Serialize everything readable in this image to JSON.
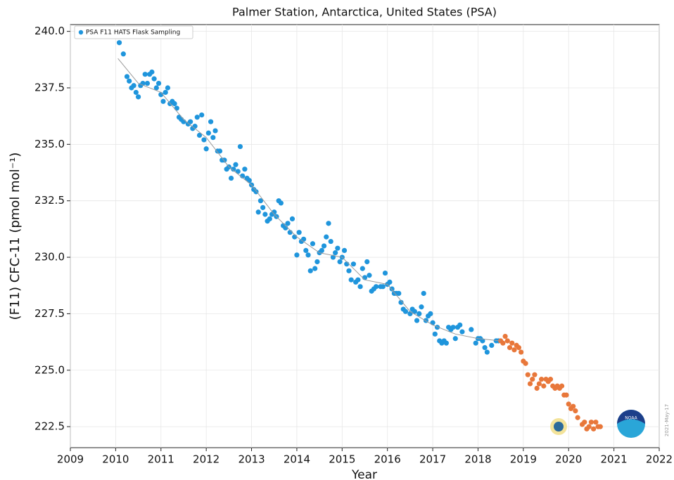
{
  "chart_data": {
    "type": "scatter",
    "title": "Palmer Station, Antarctica, United States (PSA)",
    "xlabel": "Year",
    "ylabel": "(F11) CFC-11 (pmol mol⁻¹)",
    "date_note": "2021-May-17",
    "xlim": [
      2009,
      2022
    ],
    "xticks": [
      2009,
      2010,
      2011,
      2012,
      2013,
      2014,
      2015,
      2016,
      2017,
      2018,
      2019,
      2020,
      2021,
      2022
    ],
    "ylim": [
      221.57,
      240.3
    ],
    "yticks": [
      222.5,
      {
        "value": 225,
        "label": "225.0"
      },
      227.5,
      {
        "value": 230,
        "label": "230.0"
      },
      232.5,
      {
        "value": 235,
        "label": "235.0"
      },
      237.5,
      {
        "value": 240,
        "label": "240.0"
      }
    ],
    "grid": true,
    "legend": "upper left",
    "series": [
      {
        "name": "PSA F11 HATS Flask Sampling",
        "type": "scatter",
        "color": "#1f95dc",
        "x": [
          2010.08,
          2010.17,
          2010.25,
          2010.3,
          2010.35,
          2010.4,
          2010.45,
          2010.5,
          2010.55,
          2010.6,
          2010.65,
          2010.7,
          2010.75,
          2010.8,
          2010.85,
          2010.9,
          2010.95,
          2011.0,
          2011.05,
          2011.1,
          2011.15,
          2011.2,
          2011.25,
          2011.3,
          2011.35,
          2011.4,
          2011.45,
          2011.5,
          2011.6,
          2011.65,
          2011.7,
          2011.75,
          2011.8,
          2011.85,
          2011.9,
          2011.95,
          2012.0,
          2012.05,
          2012.1,
          2012.15,
          2012.2,
          2012.25,
          2012.3,
          2012.35,
          2012.4,
          2012.45,
          2012.5,
          2012.55,
          2012.6,
          2012.65,
          2012.7,
          2012.75,
          2012.8,
          2012.85,
          2012.9,
          2012.95,
          2013.0,
          2013.05,
          2013.1,
          2013.15,
          2013.2,
          2013.25,
          2013.3,
          2013.35,
          2013.4,
          2013.45,
          2013.5,
          2013.55,
          2013.6,
          2013.65,
          2013.7,
          2013.75,
          2013.8,
          2013.85,
          2013.9,
          2013.95,
          2014.0,
          2014.05,
          2014.1,
          2014.15,
          2014.2,
          2014.25,
          2014.3,
          2014.35,
          2014.4,
          2014.45,
          2014.5,
          2014.55,
          2014.6,
          2014.65,
          2014.7,
          2014.75,
          2014.8,
          2014.85,
          2014.9,
          2014.95,
          2015.0,
          2015.05,
          2015.1,
          2015.15,
          2015.2,
          2015.25,
          2015.3,
          2015.35,
          2015.4,
          2015.45,
          2015.5,
          2015.55,
          2015.6,
          2015.65,
          2015.7,
          2015.75,
          2015.85,
          2015.9,
          2015.95,
          2016.0,
          2016.05,
          2016.1,
          2016.15,
          2016.2,
          2016.25,
          2016.3,
          2016.35,
          2016.4,
          2016.5,
          2016.55,
          2016.6,
          2016.65,
          2016.7,
          2016.75,
          2016.8,
          2016.85,
          2016.9,
          2016.95,
          2017.0,
          2017.05,
          2017.1,
          2017.15,
          2017.2,
          2017.25,
          2017.3,
          2017.35,
          2017.4,
          2017.45,
          2017.5,
          2017.55,
          2017.6,
          2017.65,
          2017.85,
          2017.95,
          2018.0,
          2018.05,
          2018.1,
          2018.15,
          2018.2,
          2018.3,
          2018.4,
          2018.45
        ],
        "values": [
          239.5,
          239.0,
          238.0,
          237.8,
          237.5,
          237.6,
          237.3,
          237.1,
          237.6,
          237.7,
          238.1,
          237.7,
          238.1,
          238.2,
          237.9,
          237.5,
          237.7,
          237.2,
          236.9,
          237.3,
          237.5,
          236.8,
          236.9,
          236.8,
          236.6,
          236.2,
          236.1,
          236.0,
          235.9,
          236.0,
          235.7,
          235.8,
          236.2,
          235.4,
          236.3,
          235.2,
          234.8,
          235.5,
          236.0,
          235.3,
          235.6,
          234.7,
          234.7,
          234.3,
          234.3,
          233.9,
          234.0,
          233.5,
          233.9,
          234.1,
          233.8,
          234.9,
          233.6,
          233.9,
          233.5,
          233.4,
          233.2,
          233.0,
          232.9,
          232.0,
          232.5,
          232.2,
          231.9,
          231.6,
          231.7,
          231.9,
          232.0,
          231.8,
          232.5,
          232.4,
          231.4,
          231.3,
          231.5,
          231.1,
          231.7,
          230.9,
          230.1,
          231.1,
          230.7,
          230.8,
          230.3,
          230.1,
          229.4,
          230.6,
          229.5,
          229.8,
          230.2,
          230.3,
          230.5,
          230.9,
          231.5,
          230.7,
          230.0,
          230.2,
          230.4,
          229.8,
          230.0,
          230.3,
          229.7,
          229.4,
          229.0,
          229.7,
          228.9,
          229.0,
          228.7,
          229.5,
          229.1,
          229.8,
          229.2,
          228.5,
          228.6,
          228.7,
          228.7,
          228.7,
          229.3,
          228.8,
          228.9,
          228.6,
          228.4,
          228.4,
          228.4,
          228.0,
          227.7,
          227.6,
          227.5,
          227.7,
          227.6,
          227.2,
          227.5,
          227.8,
          228.4,
          227.2,
          227.4,
          227.5,
          227.1,
          226.6,
          226.9,
          226.3,
          226.2,
          226.3,
          226.2,
          226.9,
          226.8,
          226.9,
          226.4,
          226.9,
          227.0,
          226.7,
          226.8,
          226.2,
          226.4,
          226.4,
          226.3,
          226.0,
          225.8,
          226.1,
          226.3,
          226.3
        ]
      },
      {
        "type": "scatter",
        "color": "#e8773a",
        "x": [
          2018.5,
          2018.55,
          2018.6,
          2018.65,
          2018.7,
          2018.75,
          2018.8,
          2018.85,
          2018.9,
          2018.95,
          2019.0,
          2019.05,
          2019.1,
          2019.15,
          2019.2,
          2019.25,
          2019.3,
          2019.35,
          2019.4,
          2019.45,
          2019.5,
          2019.55,
          2019.6,
          2019.65,
          2019.7,
          2019.75,
          2019.8,
          2019.85,
          2019.9,
          2019.95,
          2020.0,
          2020.05,
          2020.1,
          2020.15,
          2020.2,
          2020.3,
          2020.35,
          2020.4,
          2020.45,
          2020.5,
          2020.55,
          2020.6,
          2020.65,
          2020.7
        ],
        "values": [
          226.3,
          226.2,
          226.5,
          226.3,
          226.0,
          226.2,
          225.9,
          226.1,
          226.0,
          225.8,
          225.4,
          225.3,
          224.8,
          224.4,
          224.6,
          224.8,
          224.2,
          224.4,
          224.6,
          224.3,
          224.6,
          224.5,
          224.6,
          224.3,
          224.2,
          224.3,
          224.2,
          224.3,
          223.9,
          223.9,
          223.5,
          223.3,
          223.4,
          223.2,
          222.9,
          222.6,
          222.7,
          222.4,
          222.5,
          222.7,
          222.4,
          222.7,
          222.5,
          222.5
        ]
      },
      {
        "type": "line",
        "color": "#9a9a9a",
        "x": [
          2010.05,
          2010.5,
          2011.0,
          2011.5,
          2012.0,
          2012.5,
          2013.0,
          2013.5,
          2014.0,
          2014.5,
          2015.0,
          2015.5,
          2016.0,
          2016.5,
          2017.0,
          2017.5,
          2018.0,
          2018.5
        ],
        "values": [
          238.8,
          237.7,
          237.3,
          236.1,
          235.3,
          234.0,
          233.2,
          231.9,
          230.9,
          230.2,
          230.0,
          229.0,
          228.8,
          227.6,
          227.0,
          226.6,
          226.4,
          226.3
        ]
      }
    ]
  }
}
